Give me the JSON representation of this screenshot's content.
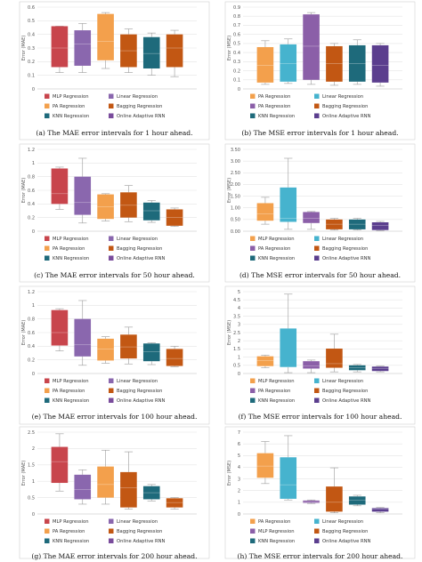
{
  "colors": {
    "MLP Regression": "#c8454c",
    "Linear Regression": "#8a67ae",
    "PA Regression": "#f3a04c",
    "Bagging Regression": "#c25713",
    "KNN Regression": "#1e6a7b",
    "Online Adaptive RNN": "#7a4c9c",
    "Linear Regression (MSE)": "#46b3ce",
    "PA Regression (MSE)": "#8b5fa8",
    "Online Adaptive RNN (MSE)": "#5b3e8e"
  },
  "chart_data": [
    {
      "id": "a",
      "type": "box",
      "metric": "MAE",
      "horizon": "1 hour",
      "caption": "(a) The MAE error intervals for 1 hour ahead.",
      "ylabel": "Error (MAE)",
      "ylim": [
        0,
        0.6
      ],
      "yticks": [
        "0",
        "0.1",
        "0.2",
        "0.3",
        "0.4",
        "0.5",
        "0.6"
      ],
      "grid": true,
      "legend_position": "bottom",
      "legend": [
        "MLP Regression",
        "Linear Regression",
        "PA Regression",
        "Bagging Regression",
        "KNN Regression",
        "Online Adaptive RNN"
      ],
      "series": [
        {
          "name": "MLP Regression",
          "color_key": "MLP Regression",
          "min": 0.12,
          "q1": 0.16,
          "median": 0.3,
          "q3": 0.46,
          "max": 0.46
        },
        {
          "name": "Linear Regression",
          "color_key": "Linear Regression",
          "min": 0.12,
          "q1": 0.17,
          "median": 0.33,
          "q3": 0.43,
          "max": 0.48
        },
        {
          "name": "PA Regression",
          "color_key": "PA Regression",
          "min": 0.15,
          "q1": 0.21,
          "median": 0.35,
          "q3": 0.55,
          "max": 0.56
        },
        {
          "name": "Bagging Regression",
          "color_key": "Bagging Regression",
          "min": 0.12,
          "q1": 0.16,
          "median": 0.28,
          "q3": 0.4,
          "max": 0.44
        },
        {
          "name": "KNN Regression",
          "color_key": "KNN Regression",
          "min": 0.1,
          "q1": 0.15,
          "median": 0.26,
          "q3": 0.38,
          "max": 0.41
        },
        {
          "name": "Online Adaptive RNN",
          "color_key": "Bagging Regression",
          "min": 0.09,
          "q1": 0.16,
          "median": 0.3,
          "q3": 0.4,
          "max": 0.43
        }
      ]
    },
    {
      "id": "b",
      "type": "box",
      "metric": "MSE",
      "horizon": "1 hour",
      "caption": "(b) The MSE error intervals for 1 hour ahead.",
      "ylabel": "Error (MSE)",
      "ylim": [
        0,
        0.9
      ],
      "yticks": [
        "0",
        "0.1",
        "0.2",
        "0.3",
        "0.4",
        "0.5",
        "0.6",
        "0.7",
        "0.8",
        "0.9"
      ],
      "grid": true,
      "legend_position": "bottom",
      "legend": [
        "PA Regression",
        "Linear Regression",
        "PA Regression",
        "Bagging Regression",
        "KNN Regression",
        "Online Adaptive RNN"
      ],
      "legend_color_keys": [
        "PA Regression",
        "Linear Regression (MSE)",
        "PA Regression (MSE)",
        "Bagging Regression",
        "KNN Regression",
        "Online Adaptive RNN (MSE)"
      ],
      "series": [
        {
          "name": "PA Regression",
          "color_key": "PA Regression",
          "min": 0.05,
          "q1": 0.07,
          "median": 0.26,
          "q3": 0.46,
          "max": 0.53
        },
        {
          "name": "Linear Regression",
          "color_key": "Linear Regression (MSE)",
          "min": 0.06,
          "q1": 0.08,
          "median": 0.28,
          "q3": 0.49,
          "max": 0.55
        },
        {
          "name": "PA Regression",
          "color_key": "PA Regression (MSE)",
          "min": 0.05,
          "q1": 0.1,
          "median": 0.47,
          "q3": 0.82,
          "max": 0.84
        },
        {
          "name": "Bagging Regression",
          "color_key": "Bagging Regression",
          "min": 0.04,
          "q1": 0.08,
          "median": 0.28,
          "q3": 0.47,
          "max": 0.5
        },
        {
          "name": "KNN Regression",
          "color_key": "KNN Regression",
          "min": 0.05,
          "q1": 0.08,
          "median": 0.28,
          "q3": 0.48,
          "max": 0.54
        },
        {
          "name": "Online Adaptive RNN",
          "color_key": "Online Adaptive RNN (MSE)",
          "min": 0.03,
          "q1": 0.07,
          "median": 0.26,
          "q3": 0.48,
          "max": 0.5
        }
      ]
    },
    {
      "id": "c",
      "type": "box",
      "metric": "MAE",
      "horizon": "50 hour",
      "caption": "(c) The MAE error intervals for 50 hour ahead.",
      "ylabel": "Error (MAE)",
      "ylim": [
        0,
        1.2
      ],
      "yticks": [
        "0",
        "0.2",
        "0.4",
        "0.6",
        "0.8",
        "1",
        "1.2"
      ],
      "grid": true,
      "legend_position": "bottom",
      "legend": [
        "MLP Regression",
        "Linear Regression",
        "PA Regression",
        "Bagging Regression",
        "KNN Regression",
        "Online Adaptive RNN"
      ],
      "series": [
        {
          "name": "MLP Regression",
          "color_key": "MLP Regression",
          "min": 0.32,
          "q1": 0.4,
          "median": 0.55,
          "q3": 0.92,
          "max": 0.94
        },
        {
          "name": "Linear Regression",
          "color_key": "Linear Regression",
          "min": 0.12,
          "q1": 0.24,
          "median": 0.42,
          "q3": 0.8,
          "max": 1.07
        },
        {
          "name": "PA Regression",
          "color_key": "PA Regression",
          "min": 0.15,
          "q1": 0.18,
          "median": 0.36,
          "q3": 0.54,
          "max": 0.55
        },
        {
          "name": "Bagging Regression",
          "color_key": "Bagging Regression",
          "min": 0.14,
          "q1": 0.2,
          "median": 0.38,
          "q3": 0.57,
          "max": 0.67
        },
        {
          "name": "KNN Regression",
          "color_key": "KNN Regression",
          "min": 0.13,
          "q1": 0.16,
          "median": 0.3,
          "q3": 0.42,
          "max": 0.45
        },
        {
          "name": "Online Adaptive RNN",
          "color_key": "Bagging Regression",
          "min": 0.07,
          "q1": 0.08,
          "median": 0.2,
          "q3": 0.32,
          "max": 0.34
        }
      ]
    },
    {
      "id": "d",
      "type": "box",
      "metric": "MSE",
      "horizon": "50 hour",
      "caption": "(d) The MSE error intervals for 50 hour ahead.",
      "ylabel": "Error (MSE)",
      "ylim": [
        0,
        3.5
      ],
      "yticks": [
        "0.00",
        "0.50",
        "1.00",
        "1.50",
        "2.00",
        "2.50",
        "3.00",
        "3.50"
      ],
      "grid": true,
      "legend_position": "bottom",
      "legend": [
        "MLP Regression",
        "Linear Regression",
        "PA Regression",
        "Bagging Regression",
        "KNN Regression",
        "Online Adaptive RNN"
      ],
      "legend_color_keys": [
        "PA Regression",
        "Linear Regression (MSE)",
        "PA Regression (MSE)",
        "Bagging Regression",
        "KNN Regression",
        "Online Adaptive RNN (MSE)"
      ],
      "series": [
        {
          "name": "MLP Regression",
          "color_key": "PA Regression",
          "min": 0.3,
          "q1": 0.45,
          "median": 0.75,
          "q3": 1.2,
          "max": 1.45
        },
        {
          "name": "Linear Regression",
          "color_key": "Linear Regression (MSE)",
          "min": 0.08,
          "q1": 0.4,
          "median": 0.55,
          "q3": 1.87,
          "max": 3.12
        },
        {
          "name": "PA Regression",
          "color_key": "PA Regression (MSE)",
          "min": 0.08,
          "q1": 0.35,
          "median": 0.55,
          "q3": 0.82,
          "max": 0.84
        },
        {
          "name": "Bagging Regression",
          "color_key": "Bagging Regression",
          "min": 0.05,
          "q1": 0.08,
          "median": 0.3,
          "q3": 0.5,
          "max": 0.55
        },
        {
          "name": "KNN Regression",
          "color_key": "KNN Regression",
          "min": 0.05,
          "q1": 0.08,
          "median": 0.3,
          "q3": 0.5,
          "max": 0.55
        },
        {
          "name": "Online Adaptive RNN",
          "color_key": "Online Adaptive RNN (MSE)",
          "min": 0.03,
          "q1": 0.05,
          "median": 0.25,
          "q3": 0.38,
          "max": 0.42
        }
      ]
    },
    {
      "id": "e",
      "type": "box",
      "metric": "MAE",
      "horizon": "100 hour",
      "caption": "(e) The MAE error intervals for 100 hour ahead.",
      "ylabel": "Error (MAE)",
      "ylim": [
        0,
        1.2
      ],
      "yticks": [
        "0",
        "0.2",
        "0.4",
        "0.6",
        "0.8",
        "1",
        "1.2"
      ],
      "grid": true,
      "legend_position": "bottom",
      "legend": [
        "MLP Regression",
        "Linear Regression",
        "PA Regression",
        "Bagging Regression",
        "KNN Regression",
        "Online Adaptive RNN"
      ],
      "series": [
        {
          "name": "MLP Regression",
          "color_key": "MLP Regression",
          "min": 0.33,
          "q1": 0.41,
          "median": 0.6,
          "q3": 0.93,
          "max": 0.95
        },
        {
          "name": "Linear Regression",
          "color_key": "Linear Regression",
          "min": 0.12,
          "q1": 0.25,
          "median": 0.42,
          "q3": 0.8,
          "max": 1.07
        },
        {
          "name": "PA Regression",
          "color_key": "PA Regression",
          "min": 0.15,
          "q1": 0.19,
          "median": 0.36,
          "q3": 0.51,
          "max": 0.54
        },
        {
          "name": "Bagging Regression",
          "color_key": "Bagging Regression",
          "min": 0.14,
          "q1": 0.22,
          "median": 0.39,
          "q3": 0.57,
          "max": 0.68
        },
        {
          "name": "KNN Regression",
          "color_key": "KNN Regression",
          "min": 0.13,
          "q1": 0.18,
          "median": 0.32,
          "q3": 0.44,
          "max": 0.45
        },
        {
          "name": "Online Adaptive RNN",
          "color_key": "Bagging Regression",
          "min": 0.1,
          "q1": 0.11,
          "median": 0.22,
          "q3": 0.36,
          "max": 0.4
        }
      ]
    },
    {
      "id": "f",
      "type": "box",
      "metric": "MSE",
      "horizon": "100 hour",
      "caption": "(f) The MSE error intervals for 100 hour ahead.",
      "ylabel": "Error (MSE)",
      "ylim": [
        0,
        5
      ],
      "yticks": [
        "0",
        "0.5",
        "1",
        "1.5",
        "2",
        "2.5",
        "3",
        "3.5",
        "4",
        "4.5",
        "5"
      ],
      "grid": true,
      "legend_position": "bottom",
      "legend": [
        "MLP Regression",
        "Linear Regression",
        "PA Regression",
        "Bagging Regression",
        "KNN Regression",
        "Online Adaptive RNN"
      ],
      "legend_color_keys": [
        "PA Regression",
        "Linear Regression (MSE)",
        "PA Regression (MSE)",
        "Bagging Regression",
        "KNN Regression",
        "Online Adaptive RNN (MSE)"
      ],
      "series": [
        {
          "name": "MLP Regression",
          "color_key": "PA Regression",
          "min": 0.35,
          "q1": 0.45,
          "median": 0.8,
          "q3": 1.05,
          "max": 1.12
        },
        {
          "name": "Linear Regression",
          "color_key": "Linear Regression (MSE)",
          "min": 0.05,
          "q1": 0.38,
          "median": 0.4,
          "q3": 2.75,
          "max": 4.85
        },
        {
          "name": "PA Regression",
          "color_key": "PA Regression (MSE)",
          "min": 0.05,
          "q1": 0.3,
          "median": 0.45,
          "q3": 0.75,
          "max": 0.82
        },
        {
          "name": "Bagging Regression",
          "color_key": "Bagging Regression",
          "min": 0.1,
          "q1": 0.35,
          "median": 0.6,
          "q3": 1.52,
          "max": 2.4
        },
        {
          "name": "KNN Regression",
          "color_key": "KNN Regression",
          "min": 0.1,
          "q1": 0.2,
          "median": 0.35,
          "q3": 0.5,
          "max": 0.55
        },
        {
          "name": "Online Adaptive RNN",
          "color_key": "Online Adaptive RNN (MSE)",
          "min": 0.1,
          "q1": 0.15,
          "median": 0.3,
          "q3": 0.42,
          "max": 0.45
        }
      ]
    },
    {
      "id": "g",
      "type": "box",
      "metric": "MAE",
      "horizon": "200 hour",
      "caption": "(g) The MAE error intervals for 200 hour ahead.",
      "ylabel": "Error (MAE)",
      "ylim": [
        0,
        2.5
      ],
      "yticks": [
        "0",
        "0.5",
        "1",
        "1.5",
        "2",
        "2.5"
      ],
      "grid": true,
      "legend_position": "bottom",
      "legend": [
        "MLP Regression",
        "Linear Regression",
        "PA Regression",
        "Bagging Regression",
        "KNN Regression",
        "Online Adaptive RNN"
      ],
      "series": [
        {
          "name": "MLP Regression",
          "color_key": "MLP Regression",
          "min": 0.7,
          "q1": 0.95,
          "median": 1.6,
          "q3": 2.05,
          "max": 2.45
        },
        {
          "name": "Linear Regression",
          "color_key": "Linear Regression",
          "min": 0.3,
          "q1": 0.45,
          "median": 0.75,
          "q3": 1.2,
          "max": 1.35
        },
        {
          "name": "PA Regression",
          "color_key": "PA Regression",
          "min": 0.3,
          "q1": 0.5,
          "median": 0.9,
          "q3": 1.45,
          "max": 1.95
        },
        {
          "name": "Bagging Regression",
          "color_key": "Bagging Regression",
          "min": 0.15,
          "q1": 0.2,
          "median": 0.8,
          "q3": 1.28,
          "max": 1.9
        },
        {
          "name": "KNN Regression",
          "color_key": "KNN Regression",
          "min": 0.4,
          "q1": 0.45,
          "median": 0.65,
          "q3": 0.85,
          "max": 0.9
        },
        {
          "name": "Online Adaptive RNN",
          "color_key": "Bagging Regression",
          "min": 0.15,
          "q1": 0.2,
          "median": 0.35,
          "q3": 0.48,
          "max": 0.5
        }
      ]
    },
    {
      "id": "h",
      "type": "box",
      "metric": "MSE",
      "horizon": "200 hour",
      "caption": "(h) The MSE error intervals for 200 hour ahead.",
      "ylabel": "Error (MSE)",
      "ylim": [
        0,
        7
      ],
      "yticks": [
        "0",
        "1",
        "2",
        "3",
        "4",
        "5",
        "6",
        "7"
      ],
      "grid": true,
      "legend_position": "bottom",
      "legend": [
        "PA Regression",
        "Linear Regression",
        "MLP Regression",
        "Bagging Regression",
        "KNN Regression",
        "Online Adaptive RNN"
      ],
      "legend_color_keys": [
        "PA Regression",
        "Linear Regression (MSE)",
        "PA Regression (MSE)",
        "Bagging Regression",
        "KNN Regression",
        "Online Adaptive RNN (MSE)"
      ],
      "series": [
        {
          "name": "PA Regression",
          "color_key": "PA Regression",
          "min": 2.6,
          "q1": 3.1,
          "median": 4.1,
          "q3": 5.2,
          "max": 6.2
        },
        {
          "name": "Linear Regression",
          "color_key": "Linear Regression (MSE)",
          "min": 1.2,
          "q1": 1.3,
          "median": 2.5,
          "q3": 4.85,
          "max": 6.7
        },
        {
          "name": "MLP Regression",
          "color_key": "PA Regression (MSE)",
          "min": 0.9,
          "q1": 0.95,
          "median": 1.02,
          "q3": 1.15,
          "max": 1.2
        },
        {
          "name": "Bagging Regression",
          "color_key": "Bagging Regression",
          "min": 0.1,
          "q1": 0.2,
          "median": 1.0,
          "q3": 2.35,
          "max": 3.95
        },
        {
          "name": "KNN Regression",
          "color_key": "KNN Regression",
          "min": 0.7,
          "q1": 0.8,
          "median": 1.2,
          "q3": 1.5,
          "max": 1.6
        },
        {
          "name": "Online Adaptive RNN",
          "color_key": "Online Adaptive RNN (MSE)",
          "min": 0.1,
          "q1": 0.2,
          "median": 0.4,
          "q3": 0.5,
          "max": 0.55
        }
      ]
    }
  ]
}
